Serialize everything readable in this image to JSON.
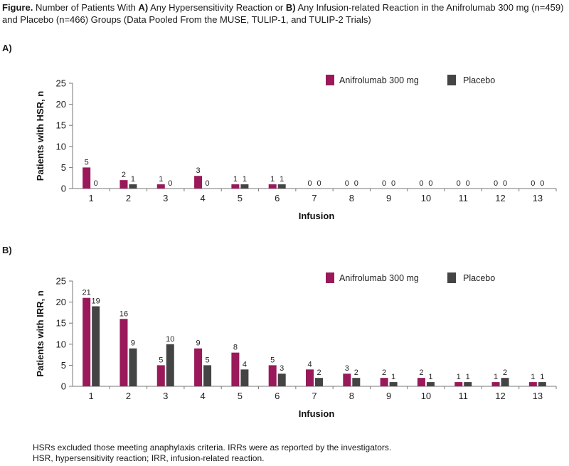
{
  "caption": {
    "prefix": "Figure.",
    "part1": " Number of Patients With ",
    "bold_a": "A)",
    "part2": " Any Hypersensitivity Reaction or ",
    "bold_b": "B)",
    "part3": " Any Infusion-related Reaction in the Anifrolumab 300 mg (n=459) and Placebo (n=466) Groups (Data Pooled From the MUSE, TULIP-1, and TULIP-2 Trials)"
  },
  "footnotes": [
    "HSRs excluded those meeting anaphylaxis criteria. IRRs were as reported by the investigators.",
    "HSR, hypersensitivity reaction; IRR, infusion-related reaction."
  ],
  "colors": {
    "anifrolumab": "#99195a",
    "placebo": "#444444",
    "axis": "#777777"
  },
  "chart_data": [
    {
      "panel": "A)",
      "type": "bar",
      "xlabel": "Infusion",
      "ylabel": "Patients with HSR, n",
      "ylim": [
        0,
        25
      ],
      "yticks": [
        0,
        5,
        10,
        15,
        20,
        25
      ],
      "legend_position": "top-right",
      "categories": [
        "1",
        "2",
        "3",
        "4",
        "5",
        "6",
        "7",
        "8",
        "9",
        "10",
        "11",
        "12",
        "13"
      ],
      "series": [
        {
          "name": "Anifrolumab 300 mg",
          "values": [
            5,
            2,
            1,
            3,
            1,
            1,
            0,
            0,
            0,
            0,
            0,
            0,
            0
          ]
        },
        {
          "name": "Placebo",
          "values": [
            0,
            1,
            0,
            0,
            1,
            1,
            0,
            0,
            0,
            0,
            0,
            0,
            0
          ]
        }
      ]
    },
    {
      "panel": "B)",
      "type": "bar",
      "xlabel": "Infusion",
      "ylabel": "Patients with IRR, n",
      "ylim": [
        0,
        25
      ],
      "yticks": [
        0,
        5,
        10,
        15,
        20,
        25
      ],
      "legend_position": "top-right",
      "categories": [
        "1",
        "2",
        "3",
        "4",
        "5",
        "6",
        "7",
        "8",
        "9",
        "10",
        "11",
        "12",
        "13"
      ],
      "series": [
        {
          "name": "Anifrolumab 300 mg",
          "values": [
            21,
            16,
            5,
            9,
            8,
            5,
            4,
            3,
            2,
            2,
            1,
            1,
            1
          ]
        },
        {
          "name": "Placebo",
          "values": [
            19,
            9,
            10,
            5,
            4,
            3,
            2,
            2,
            1,
            1,
            1,
            2,
            1
          ]
        }
      ]
    }
  ]
}
